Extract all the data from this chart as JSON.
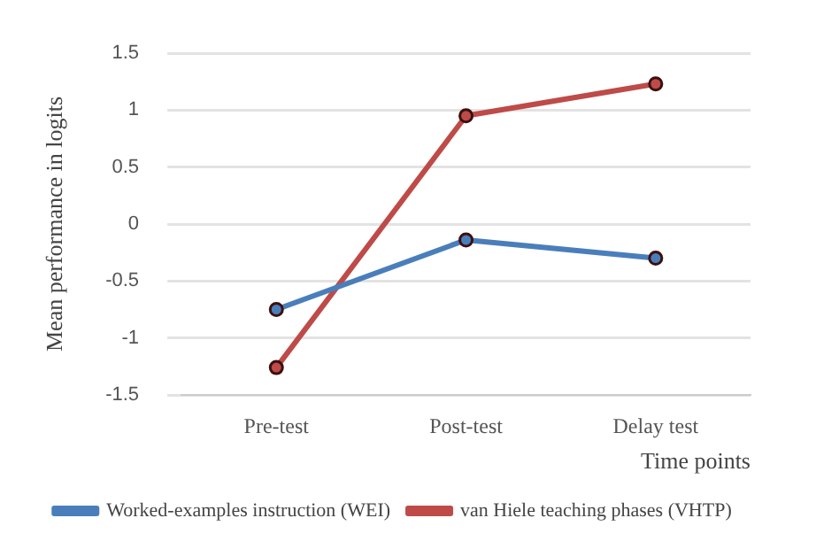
{
  "chart_data": {
    "type": "line",
    "ylabel": "Mean performance in logits",
    "xlabel": "Time points",
    "categories": [
      "Pre-test",
      "Post-test",
      "Delay test"
    ],
    "series": [
      {
        "name": "Worked-examples instruction (WEI)",
        "color": "#4a7ebb",
        "values": [
          -0.75,
          -0.14,
          -0.3
        ]
      },
      {
        "name": "van Hiele teaching phases (VHTP)",
        "color": "#be4b48",
        "values": [
          -1.26,
          0.95,
          1.23
        ]
      }
    ],
    "ylim": [
      -1.5,
      1.5
    ],
    "yticks": [
      -1.5,
      -1,
      -0.5,
      0,
      0.5,
      1,
      1.5
    ],
    "grid": "y",
    "legend": "bottom",
    "marker": "circle",
    "line_style": "solid"
  }
}
